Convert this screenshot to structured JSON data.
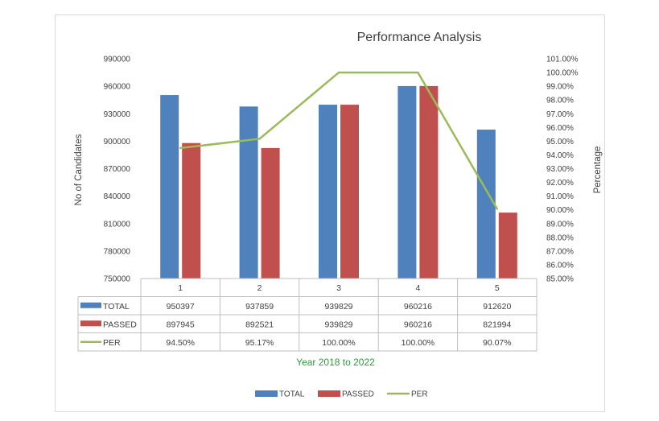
{
  "chart_data": {
    "type": "bar",
    "title": "Performance Analysis",
    "xlabel": "Year 2018 to 2022",
    "ylabel": "No of Candidates",
    "y2label": "Percentage",
    "categories": [
      "1",
      "2",
      "3",
      "4",
      "5"
    ],
    "ylim": [
      750000,
      990000
    ],
    "yticks": [
      "990000",
      "960000",
      "930000",
      "900000",
      "870000",
      "840000",
      "810000",
      "780000",
      "750000"
    ],
    "y2lim": [
      85,
      101
    ],
    "y2ticks": [
      "101.00%",
      "100.00%",
      "99.00%",
      "98.00%",
      "97.00%",
      "96.00%",
      "95.00%",
      "94.00%",
      "93.00%",
      "92.00%",
      "91.00%",
      "90.00%",
      "89.00%",
      "88.00%",
      "87.00%",
      "86.00%",
      "85.00%"
    ],
    "series": [
      {
        "name": "TOTAL",
        "type": "bar",
        "axis": "left",
        "color": "#4f81bd",
        "values": [
          950397,
          937859,
          939829,
          960216,
          912620
        ],
        "labels": [
          "950397",
          "937859",
          "939829",
          "960216",
          "912620"
        ]
      },
      {
        "name": "PASSED",
        "type": "bar",
        "axis": "left",
        "color": "#c0504d",
        "values": [
          897945,
          892521,
          939829,
          960216,
          821994
        ],
        "labels": [
          "897945",
          "892521",
          "939829",
          "960216",
          "821994"
        ]
      },
      {
        "name": "PER",
        "type": "line",
        "axis": "right",
        "color": "#9bbb59",
        "values": [
          94.5,
          95.17,
          100.0,
          100.0,
          90.07
        ],
        "labels": [
          "94.50%",
          "95.17%",
          "100.00%",
          "100.00%",
          "90.07%"
        ]
      }
    ],
    "legend": "bottom",
    "data_table": true,
    "grid": false
  }
}
